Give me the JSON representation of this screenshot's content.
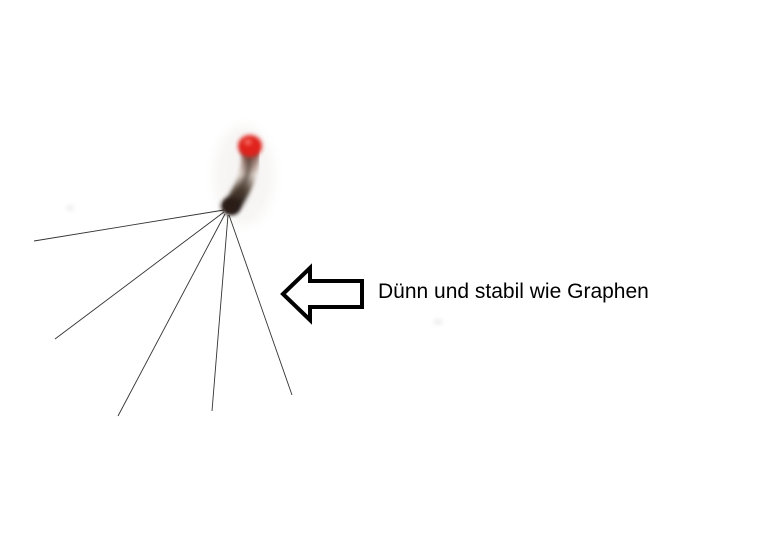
{
  "caption": {
    "text": "Dünn und stabil wie Graphen"
  },
  "arrow": {
    "direction": "left",
    "stroke_color": "#000000",
    "fill_color": "#ffffff"
  },
  "object": {
    "tip_color": "#e0231a",
    "body_color": "#2a1d16",
    "line_count": 5,
    "line_color": "#333333"
  }
}
